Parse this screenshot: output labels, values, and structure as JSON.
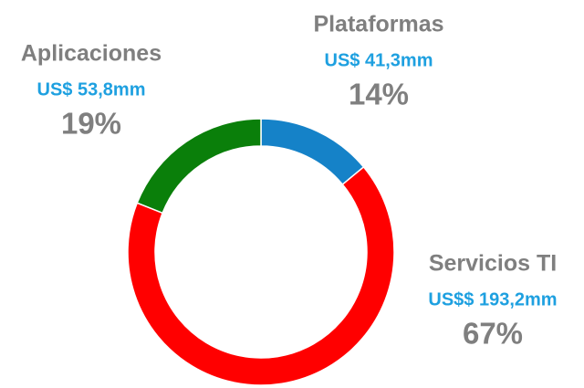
{
  "chart_data": {
    "type": "donut",
    "categories": [
      "Plataformas",
      "Servicios TI",
      "Aplicaciones"
    ],
    "amounts": [
      "US$ 41,3mm",
      "US$$ 193,2mm",
      "US$ 53,8mm"
    ],
    "values": [
      14,
      67,
      19
    ],
    "value_labels": [
      "14%",
      "67%",
      "19%"
    ],
    "colors": [
      "#1582c8",
      "#ff0000",
      "#0a7f0a"
    ]
  }
}
